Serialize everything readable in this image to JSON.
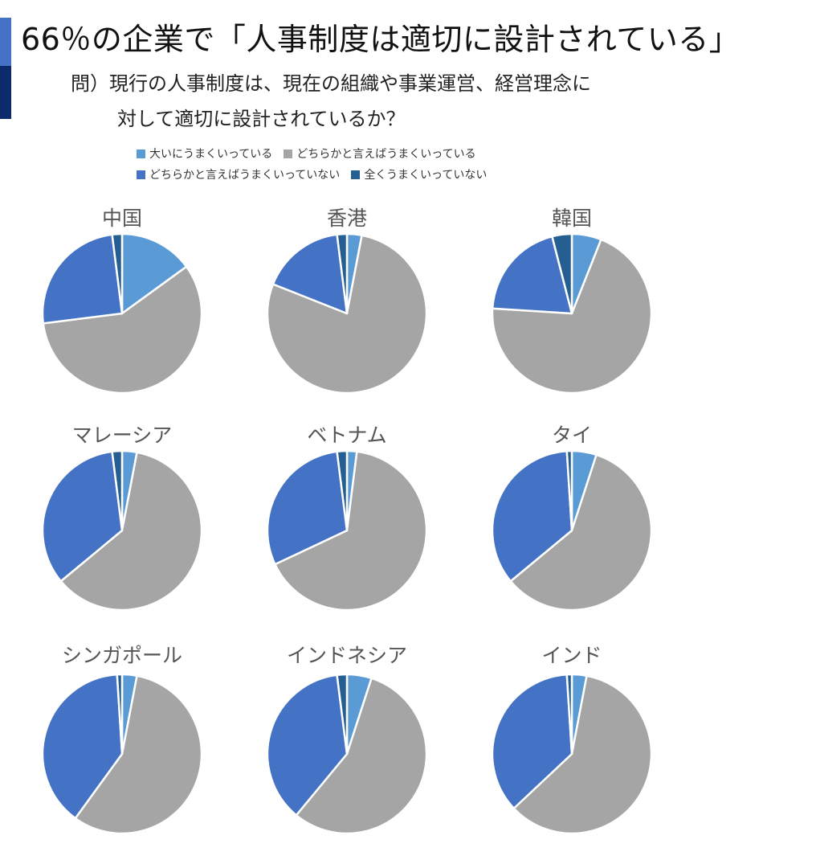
{
  "header": {
    "title": "66％の企業で「人事制度は適切に設計されている」",
    "question_line1": "問）現行の人事制度は、現在の組織や事業運営、経営理念に",
    "question_line2": "対して適切に設計されているか？"
  },
  "colors": {
    "accent_top": "#4472c4",
    "accent_bottom": "#0d2a6b"
  },
  "chart_data": {
    "type": "pie",
    "categories": [
      "大いにうまくいっている",
      "どちらかと言えばうまくいっている",
      "どちらかと言えばうまくいっていない",
      "全くうまくいっていない"
    ],
    "colors": [
      "#5b9bd5",
      "#a5a5a5",
      "#4472c4",
      "#255e91"
    ],
    "legend_position": "top",
    "charts": [
      {
        "title": "中国",
        "values": [
          15,
          58,
          25,
          2
        ]
      },
      {
        "title": "香港",
        "values": [
          3,
          78,
          17,
          2
        ]
      },
      {
        "title": "韓国",
        "values": [
          6,
          70,
          20,
          4
        ]
      },
      {
        "title": "マレーシア",
        "values": [
          3,
          61,
          34,
          2
        ]
      },
      {
        "title": "ベトナム",
        "values": [
          2,
          66,
          30,
          2
        ]
      },
      {
        "title": "タイ",
        "values": [
          5,
          59,
          35,
          1
        ]
      },
      {
        "title": "シンガポール",
        "values": [
          3,
          57,
          39,
          1
        ]
      },
      {
        "title": "インドネシア",
        "values": [
          5,
          56,
          37,
          2
        ]
      },
      {
        "title": "インド",
        "values": [
          3,
          60,
          36,
          1
        ]
      }
    ]
  }
}
